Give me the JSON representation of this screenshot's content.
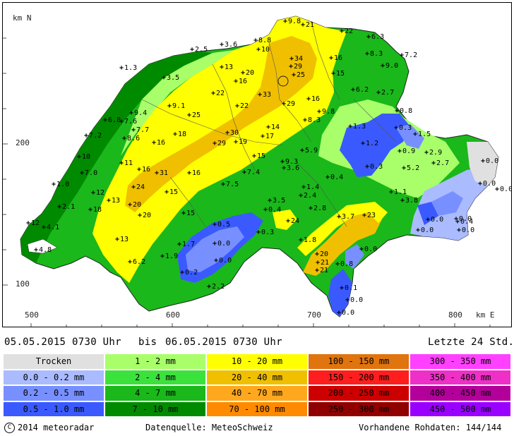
{
  "map": {
    "axis": {
      "y_unit": "km N",
      "x_unit": "km E",
      "y_ticks": [
        "200",
        "100"
      ],
      "x_ticks": [
        "500",
        "600",
        "700",
        "800"
      ]
    },
    "stations": [
      {
        "v": "9.8",
        "x": 400,
        "y": 30
      },
      {
        "v": "21",
        "x": 425,
        "y": 35
      },
      {
        "v": "22",
        "x": 480,
        "y": 44
      },
      {
        "v": "6.3",
        "x": 518,
        "y": 52
      },
      {
        "v": "8.8",
        "x": 358,
        "y": 57
      },
      {
        "v": "10",
        "x": 362,
        "y": 70
      },
      {
        "v": "3.6",
        "x": 310,
        "y": 63
      },
      {
        "v": "2.5",
        "x": 268,
        "y": 70
      },
      {
        "v": "1.3",
        "x": 168,
        "y": 96
      },
      {
        "v": "34",
        "x": 409,
        "y": 83
      },
      {
        "v": "16",
        "x": 465,
        "y": 82
      },
      {
        "v": "8.3",
        "x": 516,
        "y": 76
      },
      {
        "v": "7.2",
        "x": 565,
        "y": 78
      },
      {
        "v": "9.0",
        "x": 538,
        "y": 93
      },
      {
        "v": "13",
        "x": 310,
        "y": 95
      },
      {
        "v": "20",
        "x": 340,
        "y": 103
      },
      {
        "v": "29",
        "x": 408,
        "y": 94
      },
      {
        "v": "25",
        "x": 412,
        "y": 106
      },
      {
        "v": "15",
        "x": 468,
        "y": 104
      },
      {
        "v": "16",
        "x": 330,
        "y": 115
      },
      {
        "v": "3.5",
        "x": 228,
        "y": 110
      },
      {
        "v": "6.2",
        "x": 496,
        "y": 127
      },
      {
        "v": "2.7",
        "x": 532,
        "y": 131
      },
      {
        "v": "22",
        "x": 298,
        "y": 132
      },
      {
        "v": "33",
        "x": 364,
        "y": 134
      },
      {
        "v": "16",
        "x": 433,
        "y": 140
      },
      {
        "v": "9.1",
        "x": 236,
        "y": 150
      },
      {
        "v": "22",
        "x": 332,
        "y": 150
      },
      {
        "v": "29",
        "x": 398,
        "y": 147
      },
      {
        "v": "9.8",
        "x": 448,
        "y": 158
      },
      {
        "v": "0.8",
        "x": 558,
        "y": 157
      },
      {
        "v": "9.4",
        "x": 182,
        "y": 160
      },
      {
        "v": "6.8",
        "x": 145,
        "y": 170
      },
      {
        "v": "7.6",
        "x": 168,
        "y": 172
      },
      {
        "v": "25",
        "x": 264,
        "y": 163
      },
      {
        "v": "8.3",
        "x": 428,
        "y": 170
      },
      {
        "v": "7.7",
        "x": 185,
        "y": 184
      },
      {
        "v": "14",
        "x": 376,
        "y": 180
      },
      {
        "v": "0.3",
        "x": 557,
        "y": 181
      },
      {
        "v": "1.5",
        "x": 584,
        "y": 190
      },
      {
        "v": "7.2",
        "x": 118,
        "y": 192
      },
      {
        "v": "8.6",
        "x": 172,
        "y": 196
      },
      {
        "v": "18",
        "x": 244,
        "y": 190
      },
      {
        "v": "30",
        "x": 318,
        "y": 188
      },
      {
        "v": "17",
        "x": 368,
        "y": 193
      },
      {
        "v": "1.3",
        "x": 492,
        "y": 179
      },
      {
        "v": "16",
        "x": 214,
        "y": 202
      },
      {
        "v": "29",
        "x": 300,
        "y": 203
      },
      {
        "v": "19",
        "x": 330,
        "y": 201
      },
      {
        "v": "1.2",
        "x": 510,
        "y": 203
      },
      {
        "v": "0.9",
        "x": 562,
        "y": 214
      },
      {
        "v": "5.9",
        "x": 424,
        "y": 213
      },
      {
        "v": "2.9",
        "x": 600,
        "y": 216
      },
      {
        "v": "2.7",
        "x": 610,
        "y": 231
      },
      {
        "v": "0.0",
        "x": 680,
        "y": 228
      },
      {
        "v": "10",
        "x": 108,
        "y": 222
      },
      {
        "v": "15",
        "x": 356,
        "y": 221
      },
      {
        "v": "9.3",
        "x": 396,
        "y": 229
      },
      {
        "v": "11",
        "x": 168,
        "y": 231
      },
      {
        "v": "16",
        "x": 193,
        "y": 240
      },
      {
        "v": "31",
        "x": 218,
        "y": 245
      },
      {
        "v": "16",
        "x": 264,
        "y": 245
      },
      {
        "v": "3.6",
        "x": 398,
        "y": 238
      },
      {
        "v": "0.3",
        "x": 516,
        "y": 236
      },
      {
        "v": "5.2",
        "x": 568,
        "y": 238
      },
      {
        "v": "7.0",
        "x": 112,
        "y": 245
      },
      {
        "v": "7.4",
        "x": 342,
        "y": 244
      },
      {
        "v": "0.4",
        "x": 460,
        "y": 251
      },
      {
        "v": "1.0",
        "x": 72,
        "y": 261
      },
      {
        "v": "24",
        "x": 185,
        "y": 265
      },
      {
        "v": "7.5",
        "x": 312,
        "y": 261
      },
      {
        "v": "1.4",
        "x": 426,
        "y": 265
      },
      {
        "v": "0.0",
        "x": 676,
        "y": 260
      },
      {
        "v": "0.0",
        "x": 700,
        "y": 268
      },
      {
        "v": "12",
        "x": 128,
        "y": 273
      },
      {
        "v": "15",
        "x": 232,
        "y": 272
      },
      {
        "v": "2.4",
        "x": 422,
        "y": 277
      },
      {
        "v": "1.1",
        "x": 550,
        "y": 272
      },
      {
        "v": "13",
        "x": 150,
        "y": 284
      },
      {
        "v": "3.5",
        "x": 378,
        "y": 284
      },
      {
        "v": "3.8",
        "x": 566,
        "y": 284
      },
      {
        "v": "2.1",
        "x": 80,
        "y": 293
      },
      {
        "v": "20",
        "x": 180,
        "y": 290
      },
      {
        "v": "18",
        "x": 124,
        "y": 297
      },
      {
        "v": "0.4",
        "x": 372,
        "y": 297
      },
      {
        "v": "2.8",
        "x": 436,
        "y": 295
      },
      {
        "v": "15",
        "x": 256,
        "y": 302
      },
      {
        "v": "20",
        "x": 194,
        "y": 305
      },
      {
        "v": "3.7",
        "x": 476,
        "y": 307
      },
      {
        "v": "23",
        "x": 512,
        "y": 305
      },
      {
        "v": "0.0",
        "x": 602,
        "y": 311
      },
      {
        "v": "0.0",
        "x": 642,
        "y": 310
      },
      {
        "v": "0.4",
        "x": 644,
        "y": 314
      },
      {
        "v": "12",
        "x": 36,
        "y": 316
      },
      {
        "v": "4.1",
        "x": 58,
        "y": 322
      },
      {
        "v": "0.5",
        "x": 300,
        "y": 318
      },
      {
        "v": "24",
        "x": 404,
        "y": 313
      },
      {
        "v": "0.0",
        "x": 588,
        "y": 326
      },
      {
        "v": "0.0",
        "x": 646,
        "y": 326
      },
      {
        "v": "0.3",
        "x": 362,
        "y": 329
      },
      {
        "v": "13",
        "x": 162,
        "y": 339
      },
      {
        "v": "1.8",
        "x": 422,
        "y": 340
      },
      {
        "v": "1.7",
        "x": 250,
        "y": 346
      },
      {
        "v": "0.0",
        "x": 300,
        "y": 345
      },
      {
        "v": "4.8",
        "x": 47,
        "y": 354
      },
      {
        "v": "0.0",
        "x": 508,
        "y": 353
      },
      {
        "v": "20",
        "x": 445,
        "y": 360
      },
      {
        "v": "1.9",
        "x": 226,
        "y": 363
      },
      {
        "v": "0.0",
        "x": 302,
        "y": 369
      },
      {
        "v": "21",
        "x": 446,
        "y": 372
      },
      {
        "v": "6.2",
        "x": 180,
        "y": 371
      },
      {
        "v": "0.8",
        "x": 474,
        "y": 374
      },
      {
        "v": "21",
        "x": 445,
        "y": 383
      },
      {
        "v": "0.2",
        "x": 254,
        "y": 386
      },
      {
        "v": "2.2",
        "x": 292,
        "y": 406
      },
      {
        "v": "0.1",
        "x": 480,
        "y": 408
      },
      {
        "v": "0.0",
        "x": 488,
        "y": 425
      },
      {
        "v": "0.0",
        "x": 476,
        "y": 443
      }
    ]
  },
  "header": {
    "from_label": "05.05.2015 0730 Uhr",
    "bis_label": "bis",
    "to_label": "06.05.2015 0730 Uhr",
    "period_label": "Letzte 24 Std."
  },
  "legend": [
    {
      "label": "Trocken",
      "color": "#e0e0e0"
    },
    {
      "label": "1 - 2 mm",
      "color": "#a8ff6a"
    },
    {
      "label": "10 - 20 mm",
      "color": "#ffff00"
    },
    {
      "label": "100 - 150 mm",
      "color": "#e0740e"
    },
    {
      "label": "300 - 350 mm",
      "color": "#ff40ff"
    },
    {
      "label": "0.0 - 0.2 mm",
      "color": "#aabbff"
    },
    {
      "label": "2 - 4 mm",
      "color": "#3ce23c"
    },
    {
      "label": "20 - 40 mm",
      "color": "#f0c000"
    },
    {
      "label": "150 - 200 mm",
      "color": "#ff1e1e"
    },
    {
      "label": "350 - 400 mm",
      "color": "#ee30c8"
    },
    {
      "label": "0.2 - 0.5 mm",
      "color": "#7890ff"
    },
    {
      "label": "4 - 7 mm",
      "color": "#1ab81a"
    },
    {
      "label": "40 - 70 mm",
      "color": "#ffa81e"
    },
    {
      "label": "200 - 250 mm",
      "color": "#cc0000"
    },
    {
      "label": "400 - 450 mm",
      "color": "#b4009a"
    },
    {
      "label": "0.5 - 1.0 mm",
      "color": "#3a5aff"
    },
    {
      "label": "7 - 10 mm",
      "color": "#008a00"
    },
    {
      "label": "70 - 100 mm",
      "color": "#ff8a00"
    },
    {
      "label": "250 - 300 mm",
      "color": "#900000"
    },
    {
      "label": "450 - 500 mm",
      "color": "#9a00ff"
    }
  ],
  "footer": {
    "copyright": "2014 meteoradar",
    "source": "Datenquelle: MeteoSchweiz",
    "raw_data": "Vorhandene Rohdaten: 144/144"
  }
}
